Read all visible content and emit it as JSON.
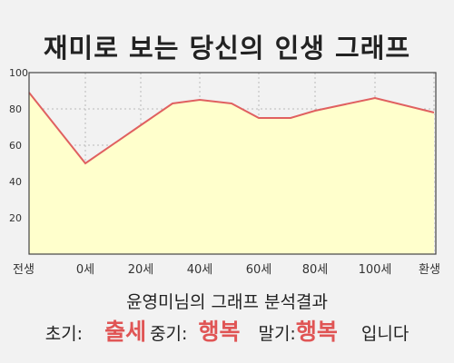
{
  "chart_data": {
    "type": "area",
    "title": "재미로 보는 당신의 인생 그래프",
    "x_tick_labels": [
      "전생",
      "0세",
      "20세",
      "40세",
      "60세",
      "80세",
      "100세",
      "환생"
    ],
    "y_ticks": [
      20,
      40,
      60,
      80,
      100
    ],
    "ylim": [
      0,
      100
    ],
    "grid": true,
    "series": [
      {
        "points": [
          {
            "x": "전생",
            "y": 89
          },
          {
            "x": "0세",
            "y": 50
          },
          {
            "x": "20세",
            "y": 71
          },
          {
            "x": "30세",
            "y": 83
          },
          {
            "x": "40세",
            "y": 85
          },
          {
            "x": "50세",
            "y": 83
          },
          {
            "x": "60세",
            "y": 75
          },
          {
            "x": "70세",
            "y": 75
          },
          {
            "x": "80세",
            "y": 79
          },
          {
            "x": "100세",
            "y": 86
          },
          {
            "x": "환생",
            "y": 78
          }
        ]
      }
    ],
    "colors": {
      "line": "#e06060",
      "fill": "#ffffcc"
    }
  },
  "summary": {
    "heading": "윤영미님의 그래프 분석결과",
    "early_label": "초기:",
    "early_value": "출세",
    "mid_label": "중기:",
    "mid_value": "행복",
    "late_label": "말기:",
    "late_value": "행복",
    "suffix": "입니다"
  }
}
